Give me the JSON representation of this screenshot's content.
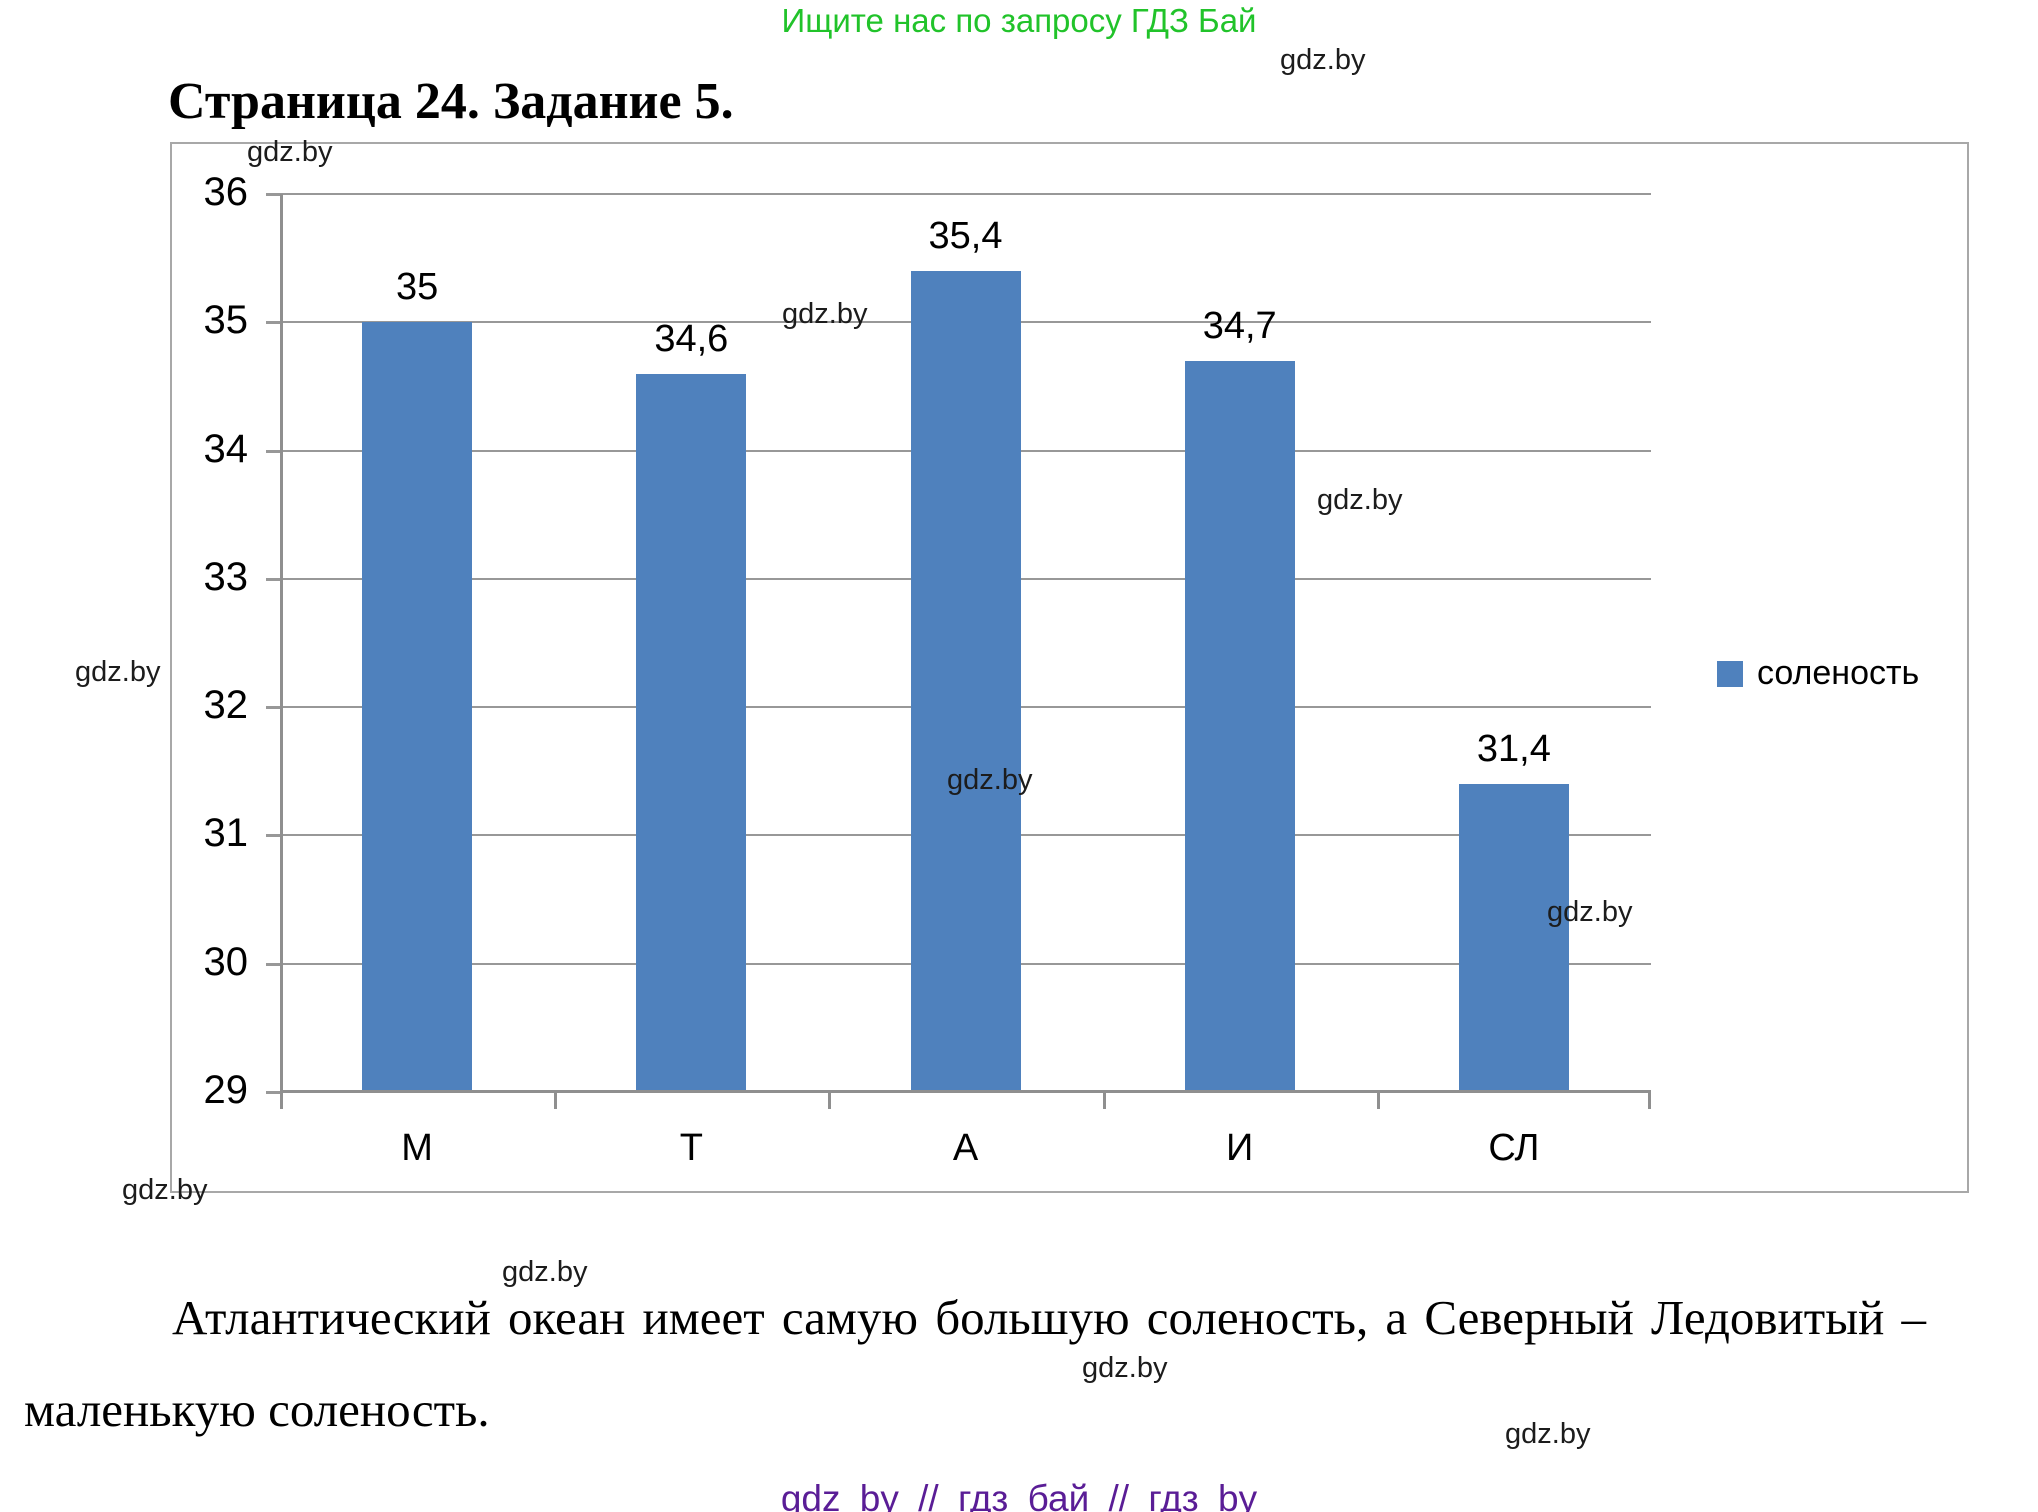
{
  "page": {
    "promo_text": "Ищите нас по запросу ГДЗ Бай",
    "promo_color": "#21c32a",
    "title": "Страница 24. Задание 5.",
    "watermark": "gdz.by",
    "conclusion": "Атлантический океан имеет самую большую соленость, а Северный Ледовитый – маленькую соленость.",
    "footer_text": "gdz by // гдз бай // гдз by",
    "footer_color": "#5a1d96"
  },
  "chart_data": {
    "type": "bar",
    "categories": [
      "М",
      "Т",
      "А",
      "И",
      "СЛ"
    ],
    "values": [
      35,
      34.6,
      35.4,
      34.7,
      31.4
    ],
    "value_labels": [
      "35",
      "34,6",
      "35,4",
      "34,7",
      "31,4"
    ],
    "series": [
      {
        "name": "соленость",
        "values": [
          35,
          34.6,
          35.4,
          34.7,
          31.4
        ]
      }
    ],
    "title": "",
    "xlabel": "",
    "ylabel": "",
    "ylim": [
      29,
      36
    ],
    "yticks": [
      36,
      35,
      34,
      33,
      32,
      31,
      30,
      29
    ],
    "grid": true,
    "legend_entries": [
      "соленость"
    ],
    "legend_position": "right",
    "bar_color": "#4F81BD",
    "gridline_color": "#989898"
  }
}
